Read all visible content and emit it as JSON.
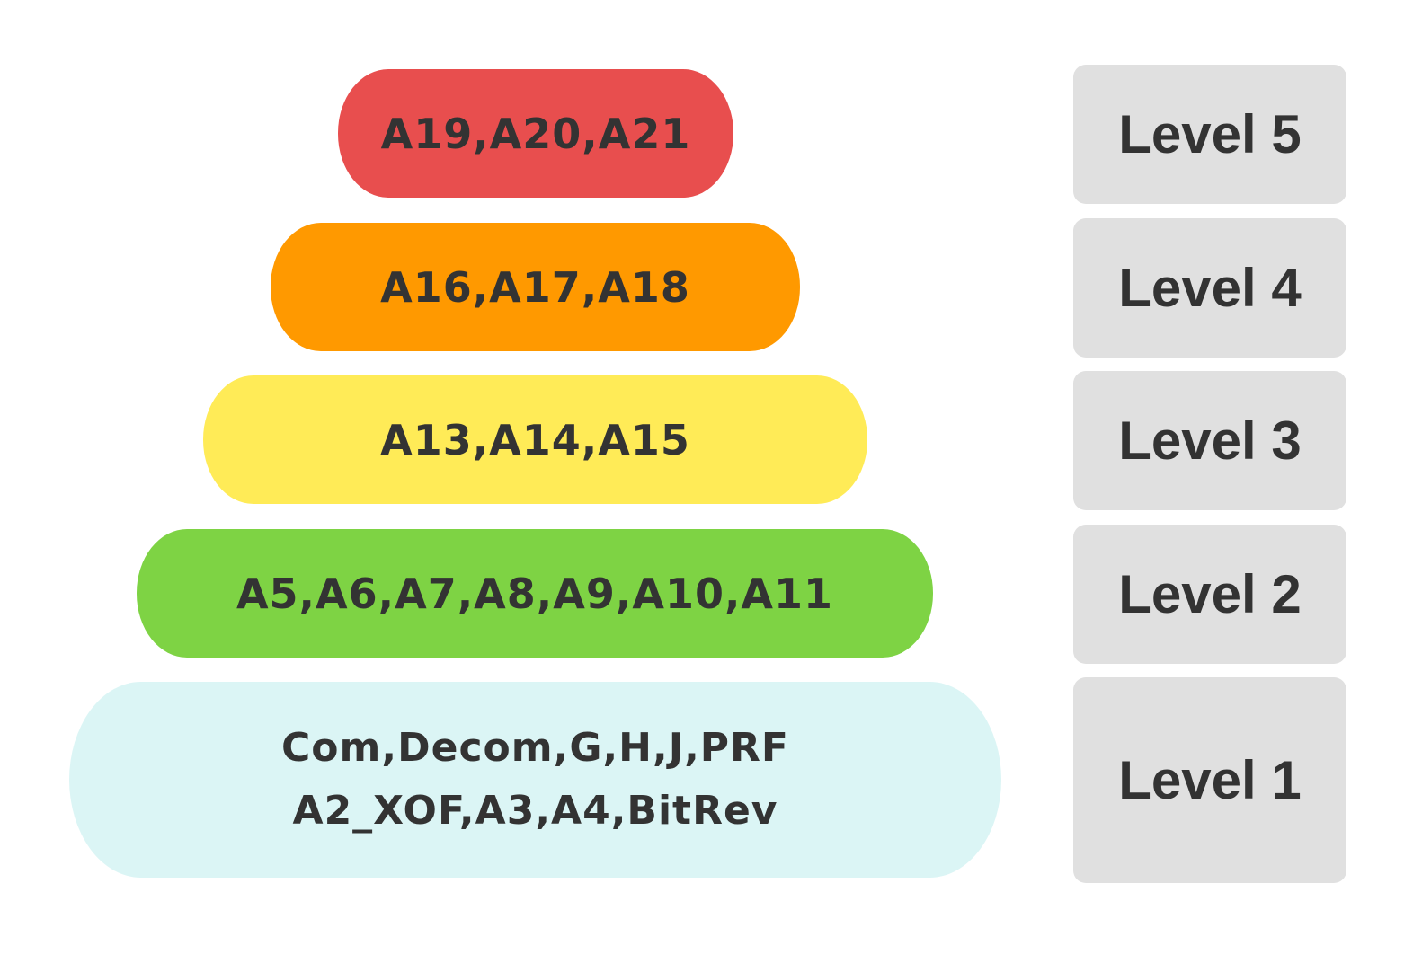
{
  "tiers": [
    {
      "level": "Level 5",
      "lines": [
        "A19,A20,A21"
      ],
      "color": "#e84e4e"
    },
    {
      "level": "Level 4",
      "lines": [
        "A16,A17,A18"
      ],
      "color": "#ff9900"
    },
    {
      "level": "Level 3",
      "lines": [
        "A13,A14,A15"
      ],
      "color": "#ffeb57"
    },
    {
      "level": "Level 2",
      "lines": [
        "A5,A6,A7,A8,A9,A10,A11"
      ],
      "color": "#7ed344"
    },
    {
      "level": "Level 1",
      "lines": [
        "Com,Decom,G,H,J,PRF",
        "A2_XOF,A3,A4,BitRev"
      ],
      "color": "#dbf5f5"
    }
  ],
  "level_box_color": "#e0e0e0",
  "text_color": "#333333"
}
